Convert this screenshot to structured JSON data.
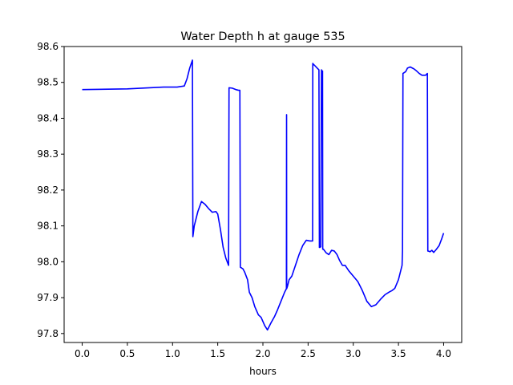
{
  "chart_data": {
    "type": "line",
    "title": "Water Depth h at gauge 535",
    "xlabel": "hours",
    "ylabel": "",
    "xlim": [
      -0.2,
      4.2
    ],
    "ylim": [
      97.775,
      98.6
    ],
    "xticks": [
      0.0,
      0.5,
      1.0,
      1.5,
      2.0,
      2.5,
      3.0,
      3.5,
      4.0
    ],
    "xtick_labels": [
      "0.0",
      "0.5",
      "1.0",
      "1.5",
      "2.0",
      "2.5",
      "3.0",
      "3.5",
      "4.0"
    ],
    "yticks": [
      97.8,
      97.9,
      98.0,
      98.1,
      98.2,
      98.3,
      98.4,
      98.5,
      98.6
    ],
    "ytick_labels": [
      "97.8",
      "97.9",
      "98.0",
      "98.1",
      "98.2",
      "98.3",
      "98.4",
      "98.5",
      "98.6"
    ],
    "grid": false,
    "series_color": "#0000ff",
    "series": [
      {
        "x": [
          0.0,
          0.5,
          0.9,
          1.05,
          1.13,
          1.16,
          1.19,
          1.22,
          1.225,
          1.24,
          1.28,
          1.32,
          1.36,
          1.4,
          1.44,
          1.48,
          1.5,
          1.53,
          1.56,
          1.59,
          1.62,
          1.625,
          1.66,
          1.7,
          1.73,
          1.745,
          1.75,
          1.78,
          1.8,
          1.83,
          1.85,
          1.88,
          1.91,
          1.95,
          1.98,
          2.02,
          2.05,
          2.09,
          2.13,
          2.16,
          2.2,
          2.24,
          2.26,
          2.262,
          2.263,
          2.27,
          2.29,
          2.32,
          2.36,
          2.4,
          2.44,
          2.48,
          2.52,
          2.55,
          2.552,
          2.56,
          2.57,
          2.6,
          2.62,
          2.625,
          2.63,
          2.64,
          2.648,
          2.65,
          2.66,
          2.662,
          2.67,
          2.7,
          2.73,
          2.76,
          2.79,
          2.82,
          2.85,
          2.88,
          2.91,
          2.95,
          3.0,
          3.05,
          3.1,
          3.15,
          3.2,
          3.25,
          3.3,
          3.35,
          3.4,
          3.43,
          3.46,
          3.5,
          3.54,
          3.545,
          3.55,
          3.58,
          3.6,
          3.63,
          3.67,
          3.7,
          3.73,
          3.76,
          3.8,
          3.82,
          3.825,
          3.83,
          3.85,
          3.87,
          3.89,
          3.92,
          3.95,
          3.98,
          4.0
        ],
        "y": [
          98.48,
          98.482,
          98.487,
          98.487,
          98.49,
          98.51,
          98.54,
          98.562,
          98.07,
          98.1,
          98.14,
          98.168,
          98.16,
          98.148,
          98.138,
          98.14,
          98.133,
          98.09,
          98.04,
          98.01,
          97.99,
          98.485,
          98.484,
          98.48,
          98.478,
          98.478,
          97.985,
          97.98,
          97.97,
          97.95,
          97.915,
          97.9,
          97.875,
          97.852,
          97.845,
          97.822,
          97.81,
          97.83,
          97.848,
          97.865,
          97.89,
          97.915,
          97.925,
          98.41,
          97.925,
          97.93,
          97.95,
          97.96,
          97.99,
          98.02,
          98.045,
          98.06,
          98.058,
          98.058,
          98.553,
          98.55,
          98.548,
          98.54,
          98.535,
          98.04,
          98.04,
          98.042,
          98.535,
          98.53,
          98.532,
          98.035,
          98.035,
          98.025,
          98.02,
          98.032,
          98.03,
          98.02,
          98.003,
          97.99,
          97.99,
          97.975,
          97.96,
          97.945,
          97.92,
          97.89,
          97.875,
          97.88,
          97.895,
          97.908,
          97.916,
          97.92,
          97.926,
          97.95,
          97.99,
          98.03,
          98.525,
          98.53,
          98.54,
          98.543,
          98.538,
          98.532,
          98.525,
          98.52,
          98.52,
          98.525,
          98.03,
          98.03,
          98.028,
          98.032,
          98.026,
          98.035,
          98.045,
          98.065,
          98.08
        ]
      }
    ]
  }
}
